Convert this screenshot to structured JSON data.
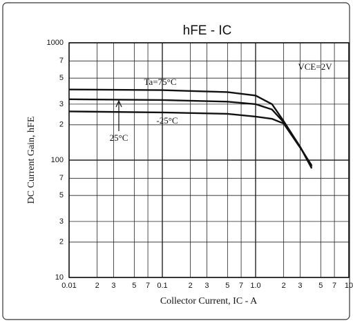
{
  "chart_data": {
    "type": "line",
    "title": "hFE - IC",
    "x_label": "Collector Current, IC - A",
    "y_label": "DC Current Gain, hFE",
    "annotations": [
      "Ta=75°C",
      "25°C",
      "-25°C",
      "VCE=2V"
    ],
    "log_x": true,
    "log_y": true,
    "grid": true,
    "xlim": [
      0.01,
      10
    ],
    "ylim": [
      10,
      1000
    ],
    "xticks": [
      0.01,
      {
        "value": 0.02,
        "label": "2"
      },
      {
        "value": 0.03,
        "label": "3"
      },
      {
        "value": 0.05,
        "label": "5"
      },
      {
        "value": 0.07,
        "label": "7"
      },
      0.1,
      {
        "value": 0.2,
        "label": "2"
      },
      {
        "value": 0.3,
        "label": "3"
      },
      {
        "value": 0.5,
        "label": "5"
      },
      {
        "value": 0.7,
        "label": "7"
      },
      {
        "value": 1,
        "label": "1.0"
      },
      {
        "value": 2,
        "label": "2"
      },
      {
        "value": 3,
        "label": "3"
      },
      {
        "value": 5,
        "label": "5"
      },
      {
        "value": 7,
        "label": "7"
      },
      10
    ],
    "yticks": [
      10,
      {
        "value": 20,
        "label": "2"
      },
      {
        "value": 30,
        "label": "3"
      },
      {
        "value": 50,
        "label": "5"
      },
      {
        "value": 70,
        "label": "7"
      },
      100,
      {
        "value": 200,
        "label": "2"
      },
      {
        "value": 300,
        "label": "3"
      },
      {
        "value": 500,
        "label": "5"
      },
      {
        "value": 700,
        "label": "7"
      },
      1000
    ],
    "x": [
      0.01,
      0.1,
      0.5,
      1,
      1.5,
      2,
      3,
      4
    ],
    "series": [
      {
        "name": "Ta=75°C",
        "color": "#111111",
        "values": [
          400,
          395,
          380,
          355,
          300,
          215,
          130,
          85
        ]
      },
      {
        "name": "25°C",
        "color": "#111111",
        "values": [
          330,
          325,
          315,
          300,
          270,
          210,
          130,
          88
        ]
      },
      {
        "name": "-25°C",
        "color": "#111111",
        "values": [
          260,
          255,
          248,
          235,
          225,
          205,
          128,
          90
        ]
      }
    ]
  }
}
